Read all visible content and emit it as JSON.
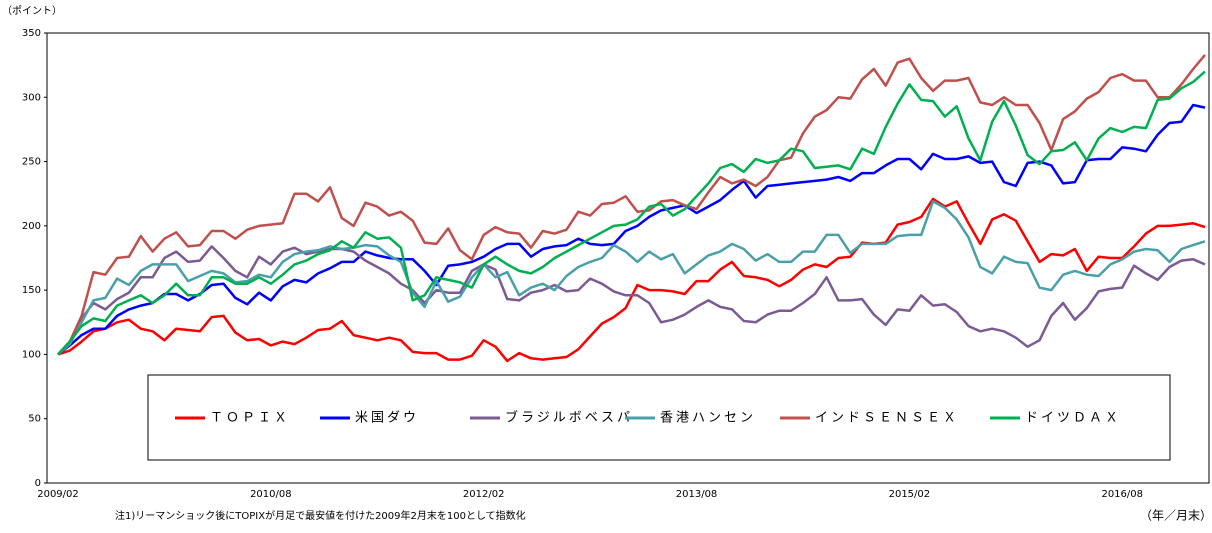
{
  "chart_data": {
    "type": "line",
    "y_unit_label": "（ポイント）",
    "x_unit_label": "（年／月末）",
    "note": "注1)リーマンショック後にTOPIXが月足で最安値を付けた2009年2月末を100として指数化",
    "categories": [
      "2009/02",
      null,
      null,
      null,
      null,
      null,
      null,
      null,
      null,
      null,
      null,
      null,
      null,
      null,
      null,
      null,
      null,
      null,
      "2010/08",
      null,
      null,
      null,
      null,
      null,
      null,
      null,
      null,
      null,
      null,
      null,
      null,
      null,
      null,
      null,
      null,
      null,
      "2012/02",
      null,
      null,
      null,
      null,
      null,
      null,
      null,
      null,
      null,
      null,
      null,
      null,
      null,
      null,
      null,
      null,
      null,
      "2013/08",
      null,
      null,
      null,
      null,
      null,
      null,
      null,
      null,
      null,
      null,
      null,
      null,
      null,
      null,
      null,
      null,
      null,
      "2015/02",
      null,
      null,
      null,
      null,
      null,
      null,
      null,
      null,
      null,
      null,
      null,
      null,
      null,
      null,
      null,
      null,
      null,
      "2016/08",
      null,
      null,
      null,
      null,
      null,
      null,
      null
    ],
    "ylim": [
      0,
      350
    ],
    "yticks": [
      0,
      50,
      100,
      150,
      200,
      250,
      300,
      350
    ],
    "grid": false,
    "series": [
      {
        "name": "ＴＯＰＩＸ",
        "color": "#ff0000",
        "values": [
          100,
          103,
          110,
          118,
          120,
          125,
          127,
          120,
          118,
          111,
          120,
          119,
          118,
          129,
          130,
          117,
          111,
          112,
          107,
          110,
          108,
          113,
          119,
          120,
          126,
          115,
          113,
          111,
          113,
          111,
          102,
          101,
          101,
          96,
          96,
          99,
          111,
          106,
          95,
          101,
          97,
          96,
          97,
          98,
          104,
          114,
          124,
          129,
          136,
          154,
          150,
          150,
          149,
          147,
          157,
          157,
          166,
          172,
          161,
          160,
          158,
          153,
          158,
          166,
          170,
          168,
          175,
          176,
          187,
          186,
          187,
          201,
          203,
          207,
          221,
          215,
          219,
          202,
          186,
          205,
          209,
          204,
          188,
          172,
          178,
          177,
          182,
          165,
          176,
          175,
          175,
          184,
          194,
          200,
          200,
          201,
          202,
          199
        ]
      },
      {
        "name": "米国ダウ",
        "color": "#0000ff",
        "values": [
          100,
          107,
          115,
          120,
          120,
          130,
          135,
          138,
          140,
          147,
          147,
          142,
          147,
          154,
          155,
          144,
          139,
          148,
          142,
          153,
          158,
          156,
          163,
          167,
          172,
          172,
          180,
          177,
          175,
          174,
          174,
          165,
          154,
          169,
          170,
          172,
          176,
          182,
          186,
          186,
          176,
          182,
          184,
          185,
          190,
          186,
          185,
          186,
          196,
          200,
          207,
          212,
          214,
          216,
          210,
          215,
          220,
          228,
          235,
          222,
          231,
          232,
          233,
          234,
          235,
          236,
          238,
          235,
          241,
          241,
          247,
          252,
          252,
          244,
          256,
          252,
          252,
          254,
          249,
          250,
          234,
          231,
          249,
          250,
          247,
          233,
          234,
          251,
          252,
          252,
          261,
          260,
          258,
          271,
          280,
          281,
          294,
          292
        ]
      },
      {
        "name": "ブラジルボベスパ",
        "color": "#7b5b93",
        "values": [
          100,
          108,
          128,
          140,
          135,
          143,
          148,
          160,
          160,
          175,
          180,
          172,
          173,
          184,
          175,
          165,
          160,
          176,
          170,
          180,
          183,
          178,
          180,
          182,
          182,
          180,
          173,
          168,
          163,
          155,
          150,
          140,
          150,
          148,
          148,
          165,
          170,
          166,
          143,
          142,
          148,
          150,
          154,
          149,
          150,
          159,
          155,
          149,
          146,
          146,
          140,
          125,
          127,
          131,
          137,
          142,
          137,
          135,
          126,
          125,
          131,
          134,
          134,
          140,
          147,
          160,
          142,
          142,
          143,
          131,
          123,
          135,
          134,
          146,
          138,
          139,
          133,
          122,
          118,
          120,
          118,
          113,
          106,
          111,
          130,
          140,
          127,
          136,
          149,
          151,
          152,
          169,
          163,
          158,
          168,
          173,
          174,
          170
        ]
      },
      {
        "name": "香港ハンセン",
        "color": "#4aa0a8",
        "values": [
          100,
          108,
          125,
          142,
          144,
          159,
          154,
          165,
          170,
          170,
          170,
          157,
          161,
          165,
          163,
          156,
          157,
          162,
          160,
          172,
          178,
          180,
          181,
          184,
          182,
          183,
          185,
          184,
          177,
          172,
          148,
          137,
          157,
          141,
          145,
          160,
          170,
          160,
          164,
          146,
          152,
          155,
          150,
          161,
          168,
          172,
          175,
          185,
          180,
          172,
          180,
          174,
          178,
          163,
          170,
          177,
          180,
          186,
          182,
          173,
          178,
          172,
          172,
          180,
          180,
          193,
          193,
          179,
          186,
          186,
          186,
          192,
          193,
          193,
          219,
          214,
          205,
          191,
          168,
          163,
          176,
          172,
          171,
          152,
          150,
          162,
          165,
          162,
          161,
          170,
          174,
          180,
          182,
          181,
          172,
          182,
          185,
          188
        ]
      },
      {
        "name": "インドＳＥＮＳＥＸ",
        "color": "#c0504d",
        "values": [
          100,
          110,
          130,
          164,
          162,
          175,
          176,
          192,
          180,
          190,
          195,
          184,
          185,
          196,
          196,
          190,
          197,
          200,
          201,
          202,
          225,
          225,
          219,
          230,
          206,
          200,
          218,
          215,
          208,
          211,
          204,
          187,
          186,
          198,
          181,
          174,
          193,
          199,
          195,
          194,
          183,
          196,
          194,
          197,
          211,
          208,
          217,
          218,
          223,
          211,
          212,
          219,
          220,
          216,
          213,
          226,
          238,
          233,
          236,
          231,
          238,
          251,
          253,
          272,
          285,
          290,
          300,
          299,
          314,
          322,
          309,
          327,
          330,
          315,
          305,
          313,
          313,
          315,
          296,
          294,
          300,
          294,
          294,
          280,
          259,
          283,
          289,
          299,
          304,
          315,
          318,
          313,
          313,
          300,
          300,
          310,
          322,
          333
        ]
      },
      {
        "name": "ドイツＤＡＸ",
        "color": "#00b050",
        "values": [
          100,
          110,
          122,
          128,
          126,
          138,
          142,
          146,
          140,
          146,
          155,
          146,
          146,
          160,
          160,
          155,
          155,
          160,
          155,
          162,
          170,
          173,
          178,
          181,
          188,
          183,
          195,
          190,
          191,
          183,
          142,
          146,
          160,
          158,
          156,
          152,
          170,
          176,
          170,
          165,
          163,
          168,
          175,
          180,
          185,
          190,
          195,
          200,
          201,
          205,
          215,
          217,
          208,
          213,
          223,
          233,
          245,
          248,
          242,
          252,
          249,
          251,
          260,
          258,
          245,
          246,
          247,
          244,
          260,
          256,
          277,
          295,
          310,
          298,
          297,
          285,
          293,
          268,
          251,
          281,
          297,
          278,
          255,
          248,
          258,
          259,
          265,
          251,
          268,
          276,
          273,
          277,
          276,
          298,
          299,
          307,
          312,
          320
        ]
      }
    ]
  }
}
